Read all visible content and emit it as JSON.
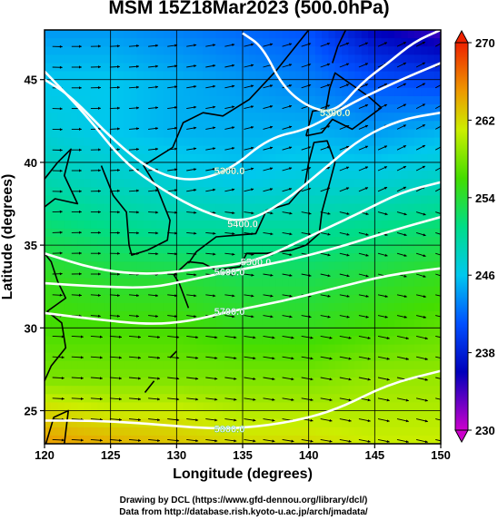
{
  "chart_data": {
    "type": "heatmap",
    "title": "MSM 15Z18Mar2023 (500.0hPa)",
    "xlabel": "Longitude (degrees)",
    "ylabel": "Latitude  (degrees)",
    "xlim": [
      120,
      150
    ],
    "ylim": [
      23,
      48
    ],
    "x_ticks": [
      "120",
      "125",
      "130",
      "135",
      "140",
      "145",
      "150"
    ],
    "y_ticks": [
      "25",
      "30",
      "35",
      "40",
      "45"
    ],
    "grid": true,
    "colorbar": {
      "min": 230,
      "max": 270,
      "tick_labels": [
        "270",
        "262",
        "254",
        "246",
        "238",
        "230"
      ],
      "tick_values": [
        270,
        262,
        254,
        246,
        238,
        230
      ],
      "stops": [
        {
          "v": 230,
          "color": "#cc00cc"
        },
        {
          "v": 236,
          "color": "#0000bb"
        },
        {
          "v": 241,
          "color": "#0050ff"
        },
        {
          "v": 246,
          "color": "#00c8ee"
        },
        {
          "v": 251,
          "color": "#00dd88"
        },
        {
          "v": 256,
          "color": "#44dd00"
        },
        {
          "v": 261,
          "color": "#ccee00"
        },
        {
          "v": 265,
          "color": "#ee9900"
        },
        {
          "v": 270,
          "color": "#ee2200"
        }
      ]
    },
    "temperature_profile": [
      {
        "lat": 48,
        "values": [
          244,
          244,
          243,
          242,
          241,
          236,
          234
        ]
      },
      {
        "lat": 45,
        "values": [
          246,
          246,
          245,
          244,
          243,
          241,
          240
        ]
      },
      {
        "lat": 42,
        "values": [
          247,
          246,
          245,
          245,
          245,
          244,
          245
        ]
      },
      {
        "lat": 39,
        "values": [
          249,
          248,
          247,
          246,
          247,
          247,
          248
        ]
      },
      {
        "lat": 36,
        "values": [
          252,
          251,
          250,
          250,
          250,
          251,
          252
        ]
      },
      {
        "lat": 33,
        "values": [
          255,
          254,
          254,
          253,
          253,
          254,
          255
        ]
      },
      {
        "lat": 30,
        "values": [
          256,
          256,
          256,
          255,
          255,
          256,
          257
        ]
      },
      {
        "lat": 27,
        "values": [
          258,
          258,
          258,
          258,
          258,
          259,
          259
        ]
      },
      {
        "lat": 25,
        "values": [
          262,
          261,
          261,
          260,
          260,
          260,
          260
        ]
      },
      {
        "lat": 23,
        "values": [
          265,
          264,
          263,
          262,
          262,
          261,
          261
        ]
      }
    ],
    "contours": [
      {
        "label": "5400.0",
        "points": [
          [
            120,
            45.5
          ],
          [
            123,
            43
          ],
          [
            126,
            40
          ],
          [
            129,
            38.3
          ],
          [
            132,
            37
          ],
          [
            135,
            36.3
          ],
          [
            138,
            37.5
          ],
          [
            141,
            39.5
          ],
          [
            144,
            41.5
          ],
          [
            147,
            42.6
          ],
          [
            150,
            43
          ]
        ]
      },
      {
        "label": "5300.0",
        "points": [
          [
            120,
            45
          ],
          [
            122,
            44
          ],
          [
            125,
            41.5
          ],
          [
            128,
            39.5
          ],
          [
            131,
            38.8
          ],
          [
            134,
            39.5
          ],
          [
            137,
            41.5
          ],
          [
            140,
            42
          ],
          [
            143,
            43.5
          ],
          [
            147,
            45
          ],
          [
            150,
            46
          ]
        ]
      },
      {
        "label": "5300.0",
        "points": [
          [
            135,
            47.8
          ],
          [
            136.5,
            47
          ],
          [
            138,
            44.6
          ],
          [
            140,
            43.3
          ],
          [
            142,
            43
          ],
          [
            144,
            44.8
          ],
          [
            146,
            46
          ],
          [
            148,
            47.3
          ],
          [
            150,
            48
          ]
        ]
      },
      {
        "label": "5500.0",
        "points": [
          [
            120,
            34.5
          ],
          [
            124,
            33.5
          ],
          [
            128,
            33.2
          ],
          [
            132,
            33.6
          ],
          [
            136,
            34
          ],
          [
            140,
            35.5
          ],
          [
            144,
            37
          ],
          [
            147,
            38.2
          ],
          [
            150,
            38.8
          ]
        ]
      },
      {
        "label": "5600.0",
        "points": [
          [
            120,
            32.7
          ],
          [
            124,
            32.5
          ],
          [
            128,
            32.4
          ],
          [
            131,
            32.9
          ],
          [
            134,
            33.4
          ],
          [
            138,
            34
          ],
          [
            142,
            34.8
          ],
          [
            146,
            35.8
          ],
          [
            150,
            36.7
          ]
        ]
      },
      {
        "label": "5700.0",
        "points": [
          [
            120,
            30.9
          ],
          [
            124,
            30.5
          ],
          [
            128,
            30.2
          ],
          [
            131,
            30.4
          ],
          [
            134,
            31
          ],
          [
            138,
            31.6
          ],
          [
            142,
            32.4
          ],
          [
            146,
            33.2
          ],
          [
            150,
            33.6
          ]
        ]
      },
      {
        "label": "5800.0",
        "points": [
          [
            120,
            24.4
          ],
          [
            124,
            24.4
          ],
          [
            128,
            24.2
          ],
          [
            131,
            24
          ],
          [
            134,
            23.9
          ],
          [
            138,
            24.2
          ],
          [
            142,
            25
          ],
          [
            146,
            26.6
          ],
          [
            150,
            27.4
          ]
        ]
      }
    ]
  },
  "credits": {
    "drawing": "Drawing by DCL (https://www.gfd-dennou.org/library/dcl/)",
    "data": "Data from http://database.rish.kyoto-u.ac.jp/arch/jmadata/"
  }
}
